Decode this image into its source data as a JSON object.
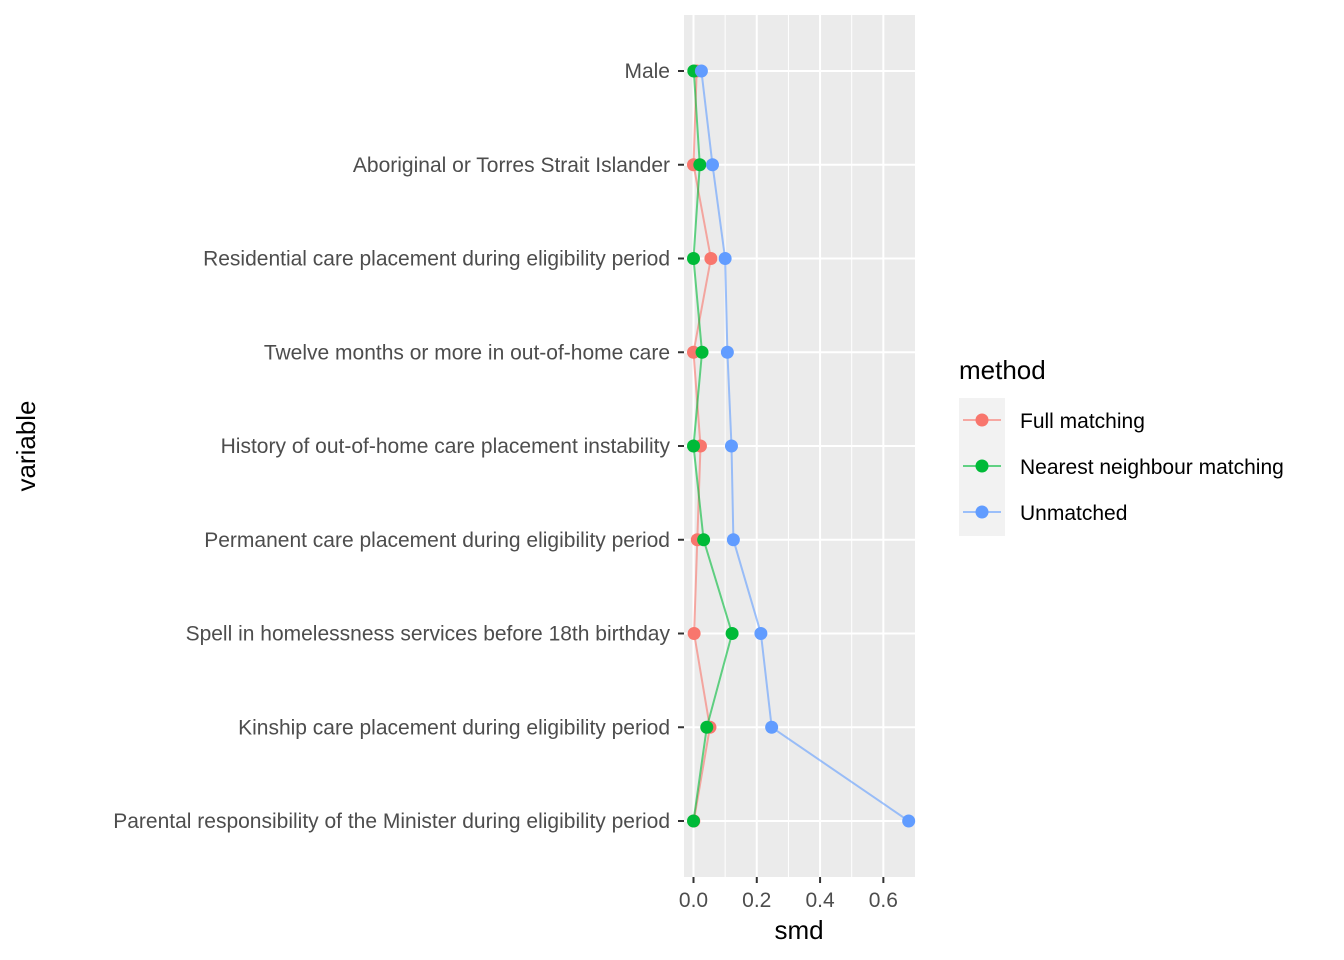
{
  "chart_data": {
    "type": "line",
    "xlabel": "smd",
    "ylabel": "variable",
    "xlim": [
      -0.03,
      0.7
    ],
    "x_ticks": [
      0.0,
      0.2,
      0.4,
      0.6
    ],
    "x_tick_labels": [
      "0.0",
      "0.2",
      "0.4",
      "0.6"
    ],
    "grid": true,
    "legend_position": "right",
    "legend_title": "method",
    "categories": [
      "Male",
      "Aboriginal or Torres Strait Islander",
      "Residential care placement during eligibility period",
      "Twelve months or more in out-of-home care",
      "History of out-of-home care placement instability",
      "Permanent care placement during eligibility period",
      "Spell in homelessness services before 18th birthday",
      "Kinship care placement during eligibility period",
      "Parental responsibility of the Minister during eligibility period"
    ],
    "series": [
      {
        "name": "Full matching",
        "color": "#F8766D",
        "values": [
          0.01,
          0.0,
          0.055,
          0.0,
          0.022,
          0.012,
          0.002,
          0.052,
          0.001
        ]
      },
      {
        "name": "Nearest neighbour matching",
        "color": "#00BA38",
        "values": [
          0.001,
          0.02,
          0.0,
          0.027,
          0.0,
          0.032,
          0.122,
          0.042,
          0.0
        ]
      },
      {
        "name": "Unmatched",
        "color": "#619CFF",
        "values": [
          0.025,
          0.06,
          0.1,
          0.107,
          0.12,
          0.126,
          0.213,
          0.247,
          0.68
        ]
      }
    ]
  }
}
